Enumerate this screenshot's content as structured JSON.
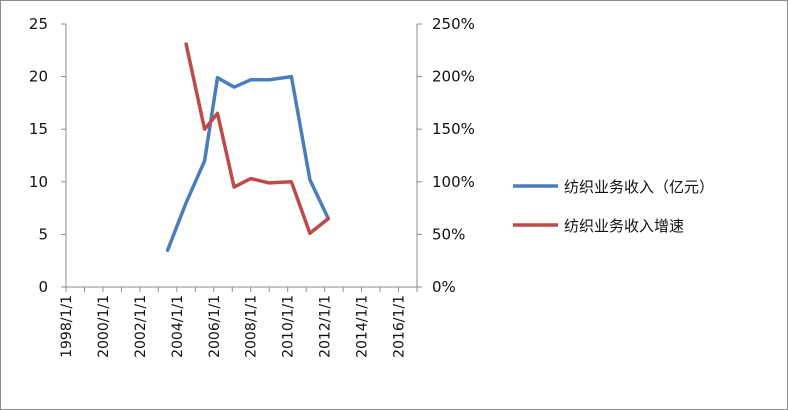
{
  "chart_data": {
    "type": "line",
    "title": "",
    "xlabel": "",
    "ylabel": "",
    "y2label": "",
    "x_ticks": [
      "1998/1/1",
      "2000/1/1",
      "2002/1/1",
      "2004/1/1",
      "2006/1/1",
      "2008/1/1",
      "2010/1/1",
      "2012/1/1",
      "2014/1/1",
      "2016/1/1"
    ],
    "x_range": [
      1998,
      2017
    ],
    "ylim": [
      0,
      25
    ],
    "y_ticks": [
      "0",
      "5",
      "10",
      "15",
      "20",
      "25"
    ],
    "y2lim": [
      0,
      250
    ],
    "y2_ticks": [
      "0%",
      "50%",
      "100%",
      "150%",
      "200%",
      "250%"
    ],
    "grid": false,
    "legend_position": "right",
    "series": [
      {
        "name": "纺织业务收入（亿元）",
        "axis": "left",
        "color": "#4a7ebb",
        "x": [
          2003.5,
          2004.5,
          2005.5,
          2006.2,
          2007.1,
          2008.0,
          2009.0,
          2010.2,
          2011.2,
          2012.2
        ],
        "y": [
          3.5,
          8.0,
          12.0,
          19.9,
          19.0,
          19.7,
          19.7,
          20.0,
          10.2,
          6.5
        ]
      },
      {
        "name": "纺织业务收入增速",
        "axis": "right",
        "color": "#be4b48",
        "x": [
          2004.5,
          2005.5,
          2006.2,
          2007.1,
          2008.0,
          2009.0,
          2010.2,
          2011.2,
          2012.2
        ],
        "y": [
          231,
          150,
          165,
          95,
          103,
          99,
          100,
          51,
          65
        ]
      }
    ]
  }
}
